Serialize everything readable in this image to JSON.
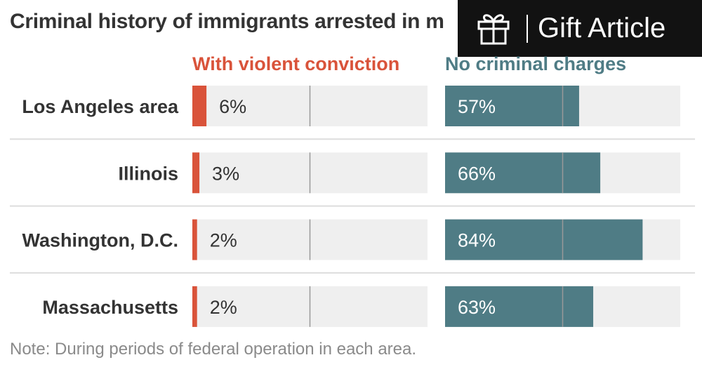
{
  "gift_button": {
    "label": "Gift Article",
    "icon": "gift-icon"
  },
  "chart_data": {
    "type": "bar",
    "title": "Criminal history of immigrants arrested in m",
    "categories": [
      "Los Angeles area",
      "Illinois",
      "Washington, D.C.",
      "Massachusetts"
    ],
    "series": [
      {
        "name": "With violent conviction",
        "values": [
          6,
          3,
          2,
          2
        ],
        "labels": [
          "6%",
          "3%",
          "2%",
          "2%"
        ],
        "color": "#d9533a"
      },
      {
        "name": "No criminal charges",
        "values": [
          57,
          66,
          84,
          63
        ],
        "labels": [
          "57%",
          "66%",
          "84%",
          "63%"
        ],
        "color": "#4f7c85"
      }
    ],
    "ylim": [
      0,
      100
    ],
    "reference_line": 50,
    "note": "Note: During periods of federal operation in each area."
  },
  "colors": {
    "track": "#efefef",
    "midline": "#999999",
    "separator": "#dddddd",
    "category_text": "#333333",
    "value_text_light": "#ffffff",
    "value_text_dark": "#333333"
  }
}
